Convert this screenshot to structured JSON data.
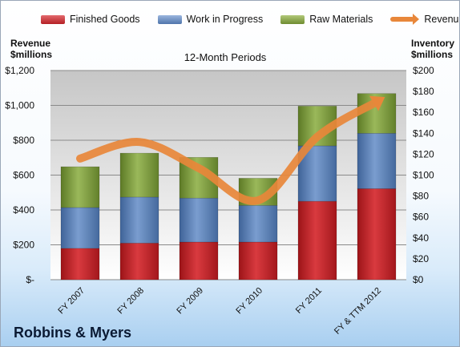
{
  "chart_data": {
    "type": "bar",
    "stacked": true,
    "company": "Robbins & Myers",
    "subtitle": "12-Month Periods",
    "left_axis_title": [
      "Revenue",
      "$millions"
    ],
    "right_axis_title": [
      "Inventory",
      "$millions"
    ],
    "categories": [
      "FY 2007",
      "FY 2008",
      "FY 2009",
      "FY 2010",
      "FY 2011",
      "FY & TTM 2012"
    ],
    "left_ticks": [
      "$-",
      "$200",
      "$400",
      "$600",
      "$800",
      "$1,000",
      "$1,200"
    ],
    "right_ticks": [
      "$0",
      "$20",
      "$40",
      "$60",
      "$80",
      "$100",
      "$120",
      "$140",
      "$160",
      "$180",
      "$200"
    ],
    "left_range": [
      0,
      1200
    ],
    "right_range": [
      0,
      200
    ],
    "series": [
      {
        "name": "Finished Goods",
        "axis": "right",
        "color": "#c0262b",
        "values": [
          30,
          35,
          36,
          36,
          75,
          87
        ]
      },
      {
        "name": "Work in Progress",
        "axis": "right",
        "color": "#5a80b8",
        "values": [
          39,
          44,
          42,
          35,
          53,
          53
        ]
      },
      {
        "name": "Raw Materials",
        "axis": "right",
        "color": "#7d9a3b",
        "values": [
          39,
          42,
          39,
          26,
          38,
          38
        ]
      },
      {
        "name": "Revenue",
        "axis": "left",
        "type": "line",
        "color": "#e8873a",
        "values": [
          695,
          790,
          640,
          455,
          820,
          1020
        ]
      }
    ],
    "grid": true
  }
}
